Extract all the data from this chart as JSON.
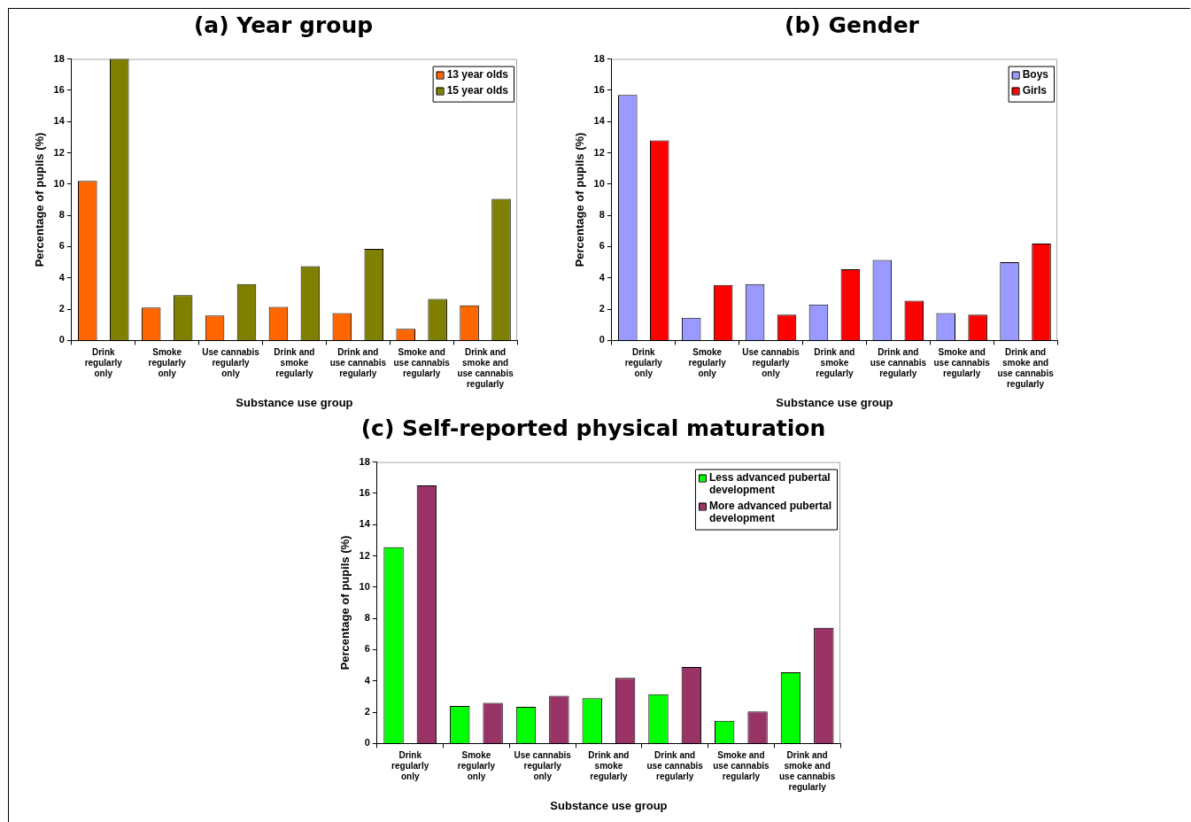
{
  "chart_data": [
    {
      "type": "bar",
      "title": "(a) Year group",
      "xlabel": "Substance use group",
      "ylabel": "Percentage of pupils (%)",
      "categories": [
        "Drink regularly only",
        "Smoke regularly only",
        "Use cannabis regularly only",
        "Drink and smoke regularly",
        "Drink and use cannabis regularly",
        "Smoke and use cannabis regularly",
        "Drink and smoke and use cannabis regularly"
      ],
      "series": [
        {
          "name": "13 year olds",
          "color": "#ff6600",
          "values": [
            10.2,
            2.1,
            1.6,
            2.15,
            1.75,
            0.75,
            2.25
          ]
        },
        {
          "name": "15 year olds",
          "color": "#808000",
          "values": [
            18,
            2.9,
            3.6,
            4.75,
            5.85,
            2.65,
            9.05
          ]
        }
      ],
      "ylim": [
        0,
        18
      ],
      "yticks": [
        0,
        2,
        4,
        6,
        8,
        10,
        12,
        14,
        16,
        18
      ],
      "legend": "top right"
    },
    {
      "type": "bar",
      "title": "(b) Gender",
      "xlabel": "Substance use group",
      "ylabel": "Percentage of pupils (%)",
      "categories": [
        "Drink regularly only",
        "Smoke regularly only",
        "Use cannabis regularly only",
        "Drink and smoke regularly",
        "Drink and use cannabis regularly",
        "Smoke and use cannabis regularly",
        "Drink and smoke and use cannabis regularly"
      ],
      "series": [
        {
          "name": "Boys",
          "color": "#9999ff",
          "values": [
            15.7,
            1.45,
            3.6,
            2.3,
            5.15,
            1.75,
            5.0
          ]
        },
        {
          "name": "Girls",
          "color": "#ff0000",
          "values": [
            12.8,
            3.55,
            1.65,
            4.55,
            2.55,
            1.65,
            6.2
          ]
        }
      ],
      "ylim": [
        0,
        18
      ],
      "yticks": [
        0,
        2,
        4,
        6,
        8,
        10,
        12,
        14,
        16,
        18
      ],
      "legend": "top right"
    },
    {
      "type": "bar",
      "title": "(c) Self-reported physical maturation",
      "xlabel": "Substance use group",
      "ylabel": "Percentage of pupils (%)",
      "categories": [
        "Drink regularly only",
        "Smoke regularly only",
        "Use cannabis regularly only",
        "Drink and smoke regularly",
        "Drink and use cannabis regularly",
        "Smoke and use cannabis regularly",
        "Drink and smoke and use cannabis regularly"
      ],
      "series": [
        {
          "name": "Less advanced pubertal development",
          "color": "#00ff00",
          "values": [
            12.55,
            2.4,
            2.35,
            2.9,
            3.15,
            1.45,
            4.55
          ]
        },
        {
          "name": "More advanced pubertal development",
          "color": "#993366",
          "values": [
            16.5,
            2.6,
            3.05,
            4.2,
            4.9,
            2.05,
            7.4
          ]
        }
      ],
      "ylim": [
        0,
        18
      ],
      "yticks": [
        0,
        2,
        4,
        6,
        8,
        10,
        12,
        14,
        16,
        18
      ],
      "legend": "top right"
    }
  ]
}
